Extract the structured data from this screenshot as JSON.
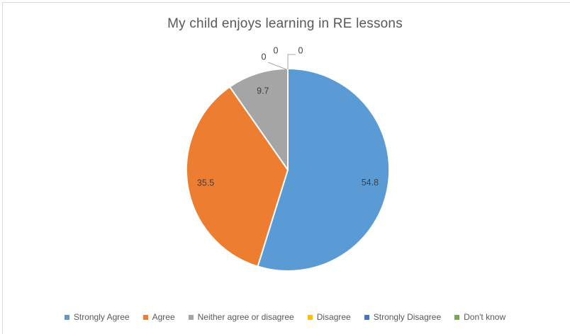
{
  "chart_data": {
    "type": "pie",
    "title": "My child enjoys learning in RE lessons",
    "categories": [
      "Strongly Agree",
      "Agree",
      "Neither agree or disagree",
      "Disagree",
      "Strongly Disagree",
      "Don't know"
    ],
    "values": [
      54.8,
      35.5,
      9.7,
      0,
      0,
      0
    ],
    "data_labels": [
      "54.8",
      "35.5",
      "9.7",
      "0",
      "0",
      "0"
    ],
    "colors": [
      "#5B9BD5",
      "#ED7D31",
      "#A5A5A5",
      "#FFC000",
      "#4472C4",
      "#70AD47"
    ],
    "legend_position": "bottom",
    "start_angle_deg": 0,
    "direction": "clockwise",
    "slice_border_color": "#FFFFFF",
    "leader_line_color": "#A6A6A6",
    "title_color": "#595959",
    "label_color": "#404040",
    "legend_text_color": "#595959",
    "chart_border_color": "#D9D9D9"
  }
}
